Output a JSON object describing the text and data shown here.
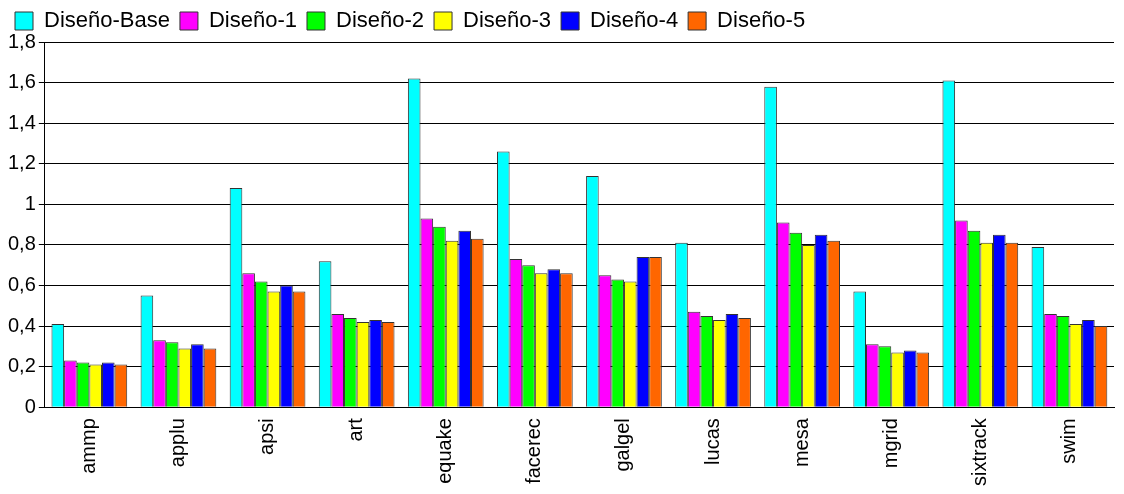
{
  "chart_data": {
    "type": "bar",
    "categories": [
      "ammp",
      "applu",
      "apsi",
      "art",
      "equake",
      "facerec",
      "galgel",
      "lucas",
      "mesa",
      "mgrid",
      "sixtrack",
      "swim"
    ],
    "series": [
      {
        "name": "Diseño-Base",
        "color": "#00ffff",
        "values": [
          0.41,
          0.55,
          1.08,
          0.72,
          1.62,
          1.26,
          1.14,
          0.81,
          1.58,
          0.57,
          1.61,
          0.79
        ]
      },
      {
        "name": "Diseño-1",
        "color": "#ff00ff",
        "values": [
          0.23,
          0.33,
          0.66,
          0.46,
          0.93,
          0.73,
          0.65,
          0.47,
          0.91,
          0.31,
          0.92,
          0.46
        ]
      },
      {
        "name": "Diseño-2",
        "color": "#00ff00",
        "values": [
          0.22,
          0.32,
          0.62,
          0.44,
          0.89,
          0.7,
          0.63,
          0.45,
          0.86,
          0.3,
          0.87,
          0.45
        ]
      },
      {
        "name": "Diseño-3",
        "color": "#ffff00",
        "values": [
          0.21,
          0.29,
          0.57,
          0.42,
          0.82,
          0.66,
          0.62,
          0.43,
          0.8,
          0.27,
          0.81,
          0.41
        ]
      },
      {
        "name": "Diseño-4",
        "color": "#0000ff",
        "values": [
          0.22,
          0.31,
          0.6,
          0.43,
          0.87,
          0.68,
          0.74,
          0.46,
          0.85,
          0.28,
          0.85,
          0.43
        ]
      },
      {
        "name": "Diseño-5",
        "color": "#ff6600",
        "values": [
          0.21,
          0.29,
          0.57,
          0.42,
          0.83,
          0.66,
          0.74,
          0.44,
          0.82,
          0.27,
          0.81,
          0.4
        ]
      }
    ],
    "ylim": [
      0,
      1.8
    ],
    "yticks": [
      {
        "value": 0,
        "label": "0"
      },
      {
        "value": 0.2,
        "label": "0,2"
      },
      {
        "value": 0.4,
        "label": "0,4"
      },
      {
        "value": 0.6,
        "label": "0,6"
      },
      {
        "value": 0.8,
        "label": "0,8"
      },
      {
        "value": 1,
        "label": "1"
      },
      {
        "value": 1.2,
        "label": "1,2"
      },
      {
        "value": 1.4,
        "label": "1,4"
      },
      {
        "value": 1.6,
        "label": "1,6"
      },
      {
        "value": 1.8,
        "label": "1,8"
      }
    ],
    "grid": "y",
    "legend": "top"
  }
}
